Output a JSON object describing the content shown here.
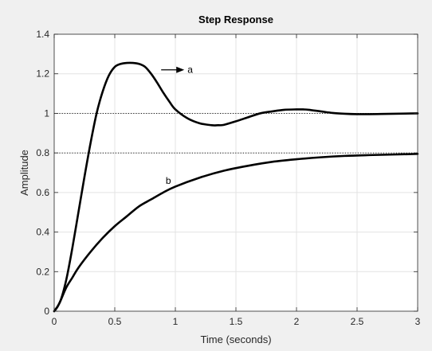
{
  "chart_data": {
    "type": "line",
    "title": "Step Response",
    "xlabel": "Time (seconds)",
    "ylabel": "Amplitude",
    "xlim": [
      0,
      3
    ],
    "ylim": [
      0,
      1.4
    ],
    "xticks": [
      0,
      0.5,
      1,
      1.5,
      2,
      2.5,
      3
    ],
    "xtick_labels": [
      "0",
      "0.5",
      "1",
      "1.5",
      "2",
      "2.5",
      "3"
    ],
    "yticks": [
      0,
      0.2,
      0.4,
      0.6,
      0.8,
      1,
      1.2,
      1.4
    ],
    "ytick_labels": [
      "0",
      "0.2",
      "0.4",
      "0.6",
      "0.8",
      "1",
      "1.2",
      "1.4"
    ],
    "grid": true,
    "reference_lines": [
      1,
      0.8
    ],
    "line_color": "#000000",
    "series": [
      {
        "name": "a",
        "x": [
          0,
          0.05,
          0.1,
          0.15,
          0.2,
          0.25,
          0.3,
          0.35,
          0.4,
          0.45,
          0.5,
          0.55,
          0.6,
          0.65,
          0.7,
          0.75,
          0.8,
          0.85,
          0.9,
          0.95,
          1.0,
          1.1,
          1.2,
          1.3,
          1.35,
          1.4,
          1.5,
          1.6,
          1.7,
          1.8,
          1.9,
          2.0,
          2.05,
          2.1,
          2.2,
          2.3,
          2.4,
          2.5,
          2.6,
          2.7,
          2.8,
          2.9,
          3.0
        ],
        "y": [
          0,
          0.05,
          0.16,
          0.32,
          0.5,
          0.68,
          0.85,
          1.0,
          1.11,
          1.19,
          1.235,
          1.25,
          1.255,
          1.255,
          1.25,
          1.235,
          1.2,
          1.155,
          1.105,
          1.06,
          1.02,
          0.975,
          0.95,
          0.94,
          0.94,
          0.942,
          0.96,
          0.98,
          1.0,
          1.01,
          1.018,
          1.02,
          1.02,
          1.018,
          1.01,
          1.002,
          0.998,
          0.996,
          0.996,
          0.997,
          0.998,
          0.999,
          1.0
        ]
      },
      {
        "name": "b",
        "x": [
          0,
          0.025,
          0.05,
          0.1,
          0.15,
          0.2,
          0.3,
          0.4,
          0.5,
          0.6,
          0.7,
          0.8,
          0.9,
          1.0,
          1.2,
          1.4,
          1.6,
          1.8,
          2.0,
          2.2,
          2.4,
          2.6,
          2.8,
          3.0
        ],
        "y": [
          0,
          0.02,
          0.05,
          0.12,
          0.17,
          0.22,
          0.3,
          0.37,
          0.43,
          0.48,
          0.53,
          0.565,
          0.6,
          0.63,
          0.675,
          0.71,
          0.735,
          0.755,
          0.768,
          0.778,
          0.785,
          0.789,
          0.792,
          0.795
        ]
      }
    ],
    "annotations": [
      {
        "text": "a",
        "x": 1.1,
        "y": 1.22,
        "arrow": true
      },
      {
        "text": "b",
        "x": 0.92,
        "y": 0.66,
        "arrow": false
      }
    ]
  }
}
